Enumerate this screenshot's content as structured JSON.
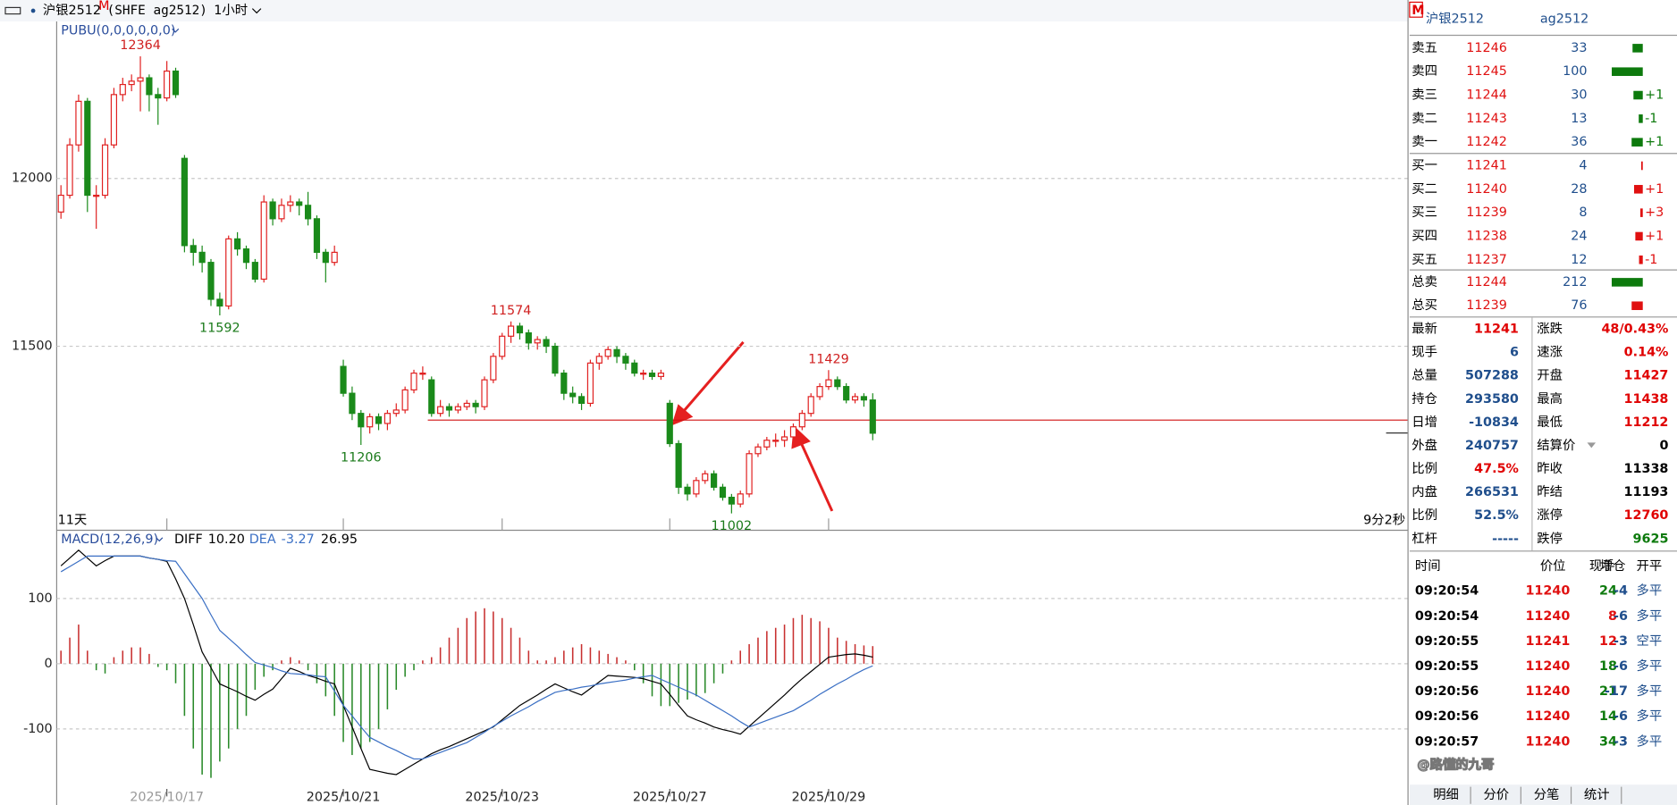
{
  "header": {
    "symbol": "沪银2512",
    "marker": "M",
    "code": "(SHFE ag2512)",
    "period": "1小时"
  },
  "chart_data": [
    {
      "type": "candlestick",
      "indicator": "PUBU(0,0,0,0,0,0)",
      "up_color": "#e02020",
      "down_color": "#1a8a1a",
      "candles": [
        [
          11900,
          11980,
          11880,
          11950
        ],
        [
          11950,
          12120,
          11940,
          12100
        ],
        [
          12100,
          12250,
          12080,
          12230
        ],
        [
          12230,
          12240,
          11900,
          11950
        ],
        [
          11950,
          11980,
          11850,
          11950
        ],
        [
          11950,
          12120,
          11940,
          12100
        ],
        [
          12100,
          12270,
          12090,
          12250
        ],
        [
          12250,
          12300,
          12230,
          12280
        ],
        [
          12280,
          12310,
          12260,
          12290
        ],
        [
          12290,
          12364,
          12200,
          12300
        ],
        [
          12300,
          12310,
          12200,
          12250
        ],
        [
          12250,
          12270,
          12160,
          12240
        ],
        [
          12240,
          12350,
          12230,
          12320
        ],
        [
          12320,
          12330,
          12240,
          12250
        ],
        [
          12060,
          12070,
          11780,
          11800
        ],
        [
          11800,
          11820,
          11740,
          11780
        ],
        [
          11780,
          11800,
          11720,
          11750
        ],
        [
          11750,
          11760,
          11620,
          11640
        ],
        [
          11640,
          11660,
          11592,
          11620
        ],
        [
          11620,
          11830,
          11610,
          11820
        ],
        [
          11820,
          11840,
          11770,
          11790
        ],
        [
          11790,
          11800,
          11730,
          11750
        ],
        [
          11750,
          11760,
          11690,
          11700
        ],
        [
          11700,
          11950,
          11690,
          11930
        ],
        [
          11930,
          11940,
          11860,
          11880
        ],
        [
          11880,
          11940,
          11870,
          11920
        ],
        [
          11920,
          11950,
          11900,
          11930
        ],
        [
          11930,
          11940,
          11890,
          11920
        ],
        [
          11920,
          11960,
          11860,
          11880
        ],
        [
          11880,
          11890,
          11760,
          11780
        ],
        [
          11780,
          11790,
          11690,
          11750
        ],
        [
          11750,
          11800,
          11740,
          11780
        ],
        [
          11440,
          11460,
          11350,
          11360
        ],
        [
          11360,
          11380,
          11280,
          11300
        ],
        [
          11300,
          11310,
          11206,
          11260
        ],
        [
          11260,
          11300,
          11240,
          11290
        ],
        [
          11290,
          11300,
          11250,
          11270
        ],
        [
          11270,
          11310,
          11250,
          11300
        ],
        [
          11300,
          11330,
          11290,
          11310
        ],
        [
          11310,
          11380,
          11300,
          11370
        ],
        [
          11370,
          11430,
          11360,
          11420
        ],
        [
          11420,
          11440,
          11400,
          11420
        ],
        [
          11400,
          11410,
          11290,
          11300
        ],
        [
          11300,
          11340,
          11290,
          11320
        ],
        [
          11320,
          11330,
          11290,
          11310
        ],
        [
          11310,
          11330,
          11300,
          11320
        ],
        [
          11320,
          11340,
          11310,
          11330
        ],
        [
          11330,
          11340,
          11300,
          11320
        ],
        [
          11320,
          11410,
          11310,
          11400
        ],
        [
          11400,
          11480,
          11390,
          11470
        ],
        [
          11470,
          11540,
          11460,
          11530
        ],
        [
          11530,
          11574,
          11510,
          11560
        ],
        [
          11560,
          11570,
          11520,
          11540
        ],
        [
          11540,
          11550,
          11490,
          11510
        ],
        [
          11510,
          11530,
          11490,
          11520
        ],
        [
          11520,
          11530,
          11480,
          11500
        ],
        [
          11500,
          11510,
          11410,
          11420
        ],
        [
          11420,
          11430,
          11340,
          11360
        ],
        [
          11360,
          11380,
          11330,
          11350
        ],
        [
          11350,
          11360,
          11310,
          11330
        ],
        [
          11330,
          11460,
          11320,
          11450
        ],
        [
          11450,
          11480,
          11430,
          11470
        ],
        [
          11470,
          11500,
          11460,
          11490
        ],
        [
          11490,
          11500,
          11450,
          11470
        ],
        [
          11470,
          11480,
          11430,
          11450
        ],
        [
          11450,
          11460,
          11410,
          11420
        ],
        [
          11420,
          11430,
          11400,
          11420
        ],
        [
          11420,
          11430,
          11400,
          11410
        ],
        [
          11410,
          11430,
          11400,
          11420
        ],
        [
          11330,
          11340,
          11200,
          11210
        ],
        [
          11210,
          11220,
          11060,
          11080
        ],
        [
          11080,
          11090,
          11040,
          11060
        ],
        [
          11060,
          11110,
          11050,
          11100
        ],
        [
          11100,
          11130,
          11090,
          11120
        ],
        [
          11120,
          11130,
          11070,
          11080
        ],
        [
          11080,
          11090,
          11040,
          11050
        ],
        [
          11050,
          11060,
          11002,
          11030
        ],
        [
          11030,
          11070,
          11020,
          11060
        ],
        [
          11060,
          11190,
          11050,
          11180
        ],
        [
          11180,
          11210,
          11170,
          11200
        ],
        [
          11200,
          11230,
          11190,
          11220
        ],
        [
          11220,
          11240,
          11200,
          11220
        ],
        [
          11220,
          11250,
          11200,
          11230
        ],
        [
          11230,
          11270,
          11220,
          11260
        ],
        [
          11260,
          11310,
          11250,
          11300
        ],
        [
          11300,
          11360,
          11290,
          11350
        ],
        [
          11350,
          11390,
          11340,
          11380
        ],
        [
          11380,
          11429,
          11370,
          11400
        ],
        [
          11400,
          11410,
          11370,
          11380
        ],
        [
          11380,
          11390,
          11330,
          11340
        ],
        [
          11340,
          11360,
          11330,
          11350
        ],
        [
          11350,
          11360,
          11320,
          11340
        ],
        [
          11340,
          11360,
          11220,
          11241
        ]
      ],
      "ylim": [
        10955,
        12468
      ],
      "yticks": [
        11500,
        12000
      ],
      "grid": true,
      "annotations": [
        {
          "x": 9,
          "y": 12364,
          "color": "#d02020"
        },
        {
          "x": 18,
          "y": 11592,
          "color": "#1a7a1a"
        },
        {
          "x": 34,
          "y": 11206,
          "color": "#1a7a1a"
        },
        {
          "x": 51,
          "y": 11574,
          "color": "#d02020"
        },
        {
          "x": 76,
          "y": 11002,
          "color": "#1a7a1a"
        },
        {
          "x": 87,
          "y": 11429,
          "color": "#d02020"
        }
      ],
      "reference_line": {
        "value": 11280,
        "color": "#d01010"
      },
      "left_note": "11天",
      "right_note": "9分2秒"
    },
    {
      "type": "macd",
      "title": "MACD(12,26,9)",
      "series": [
        {
          "name": "DIFF",
          "label": "10.20",
          "color": "#000000",
          "values": [
            150,
            162,
            174,
            162,
            150,
            158,
            165,
            165,
            165,
            165,
            162,
            160,
            157,
            130,
            100,
            60,
            18,
            -6,
            -31,
            -37,
            -43,
            -50,
            -56,
            -47,
            -39,
            -23,
            -7,
            -12,
            -18,
            -22,
            -27,
            -31,
            -64,
            -97,
            -130,
            -162,
            -165,
            -168,
            -170,
            -162,
            -154,
            -146,
            -138,
            -132,
            -127,
            -121,
            -115,
            -109,
            -103,
            -97,
            -86,
            -75,
            -64,
            -56,
            -48,
            -39,
            -31,
            -37,
            -43,
            -48,
            -38,
            -28,
            -18,
            -19,
            -20,
            -21,
            -23,
            -27,
            -31,
            -47,
            -64,
            -80,
            -86,
            -91,
            -97,
            -101,
            -104,
            -108,
            -96,
            -84,
            -72,
            -60,
            -48,
            -35,
            -23,
            -12,
            -1,
            10,
            12,
            14,
            15,
            13,
            10.2
          ]
        },
        {
          "name": "DEA",
          "label": "-3.27",
          "color": "#3a6fc4",
          "values": [
            141,
            149,
            157,
            165,
            165,
            165,
            165,
            165,
            165,
            165,
            162,
            160,
            158,
            157,
            138,
            119,
            100,
            75,
            51,
            39,
            27,
            14,
            2,
            -2,
            -6,
            -11,
            -15,
            -16,
            -17,
            -19,
            -20,
            -42,
            -64,
            -80,
            -97,
            -113,
            -120,
            -127,
            -133,
            -140,
            -146,
            -146,
            -141,
            -136,
            -131,
            -126,
            -121,
            -113,
            -105,
            -96,
            -88,
            -80,
            -73,
            -66,
            -58,
            -51,
            -44,
            -41,
            -39,
            -36,
            -34,
            -31,
            -29,
            -27,
            -25,
            -22,
            -20,
            -18,
            -24,
            -30,
            -36,
            -42,
            -48,
            -56,
            -64,
            -72,
            -80,
            -89,
            -97,
            -92,
            -87,
            -82,
            -77,
            -72,
            -64,
            -56,
            -47,
            -39,
            -31,
            -24,
            -16,
            -9,
            -3.27
          ]
        }
      ],
      "histogram": {
        "label": "26.95",
        "up_color": "#c83030",
        "down_color": "#2a8a2a",
        "values": [
          20,
          40,
          60,
          20,
          -10,
          -15,
          10,
          20,
          25,
          25,
          15,
          -5,
          -10,
          -30,
          -80,
          -130,
          -170,
          -175,
          -150,
          -130,
          -100,
          -80,
          -40,
          -20,
          -10,
          5,
          10,
          5,
          -10,
          -30,
          -50,
          -80,
          -120,
          -140,
          -130,
          -120,
          -100,
          -70,
          -40,
          -20,
          -10,
          5,
          10,
          25,
          40,
          55,
          70,
          80,
          85,
          80,
          70,
          55,
          40,
          20,
          5,
          5,
          10,
          20,
          25,
          30,
          25,
          20,
          15,
          10,
          5,
          -10,
          -30,
          -50,
          -65,
          -65,
          -60,
          -55,
          -50,
          -45,
          -30,
          -15,
          5,
          20,
          30,
          40,
          50,
          55,
          60,
          70,
          75,
          70,
          65,
          55,
          40,
          35,
          30,
          28,
          26.95
        ]
      },
      "ylim": [
        -192,
        203
      ],
      "yticks": [
        -100,
        0,
        100
      ],
      "grid": true,
      "xticks": [
        {
          "value": 12,
          "label": "2025/10/17"
        },
        {
          "value": 32,
          "label": "2025/10/21"
        },
        {
          "value": 50,
          "label": "2025/10/23"
        },
        {
          "value": 69,
          "label": "2025/10/27"
        },
        {
          "value": 87,
          "label": "2025/10/29"
        }
      ]
    }
  ],
  "quote": {
    "marker": "M",
    "title": "沪银2512",
    "code": "ag2512",
    "book": [
      {
        "label": "卖五",
        "price": 11246,
        "volume": 33,
        "color": "#0d7a0d"
      },
      {
        "label": "卖四",
        "price": 11245,
        "volume": 100,
        "color": "#0d7a0d"
      },
      {
        "label": "卖三",
        "price": 11244,
        "volume": 30,
        "color": "#0d7a0d",
        "change": "+1"
      },
      {
        "label": "卖二",
        "price": 11243,
        "volume": 13,
        "color": "#0d7a0d",
        "change": "-1"
      },
      {
        "label": "卖一",
        "price": 11242,
        "volume": 36,
        "color": "#0d7a0d",
        "change": "+1"
      },
      {
        "label": "买一",
        "price": 11241,
        "volume": 4,
        "color": "#e01010"
      },
      {
        "label": "买二",
        "price": 11240,
        "volume": 28,
        "color": "#e01010",
        "change": "+1"
      },
      {
        "label": "买三",
        "price": 11239,
        "volume": 8,
        "color": "#e01010",
        "change": "+3"
      },
      {
        "label": "买四",
        "price": 11238,
        "volume": 24,
        "color": "#e01010",
        "change": "+1"
      },
      {
        "label": "买五",
        "price": 11237,
        "volume": 12,
        "color": "#e01010",
        "change": "-1"
      }
    ],
    "totals": [
      {
        "label": "总卖",
        "price": 11244,
        "volume": 212,
        "color": "#0d7a0d"
      },
      {
        "label": "总买",
        "price": 11239,
        "volume": 76,
        "color": "#e01010"
      }
    ],
    "stats": [
      [
        {
          "label": "最新",
          "value": 11241,
          "color": "#e00000"
        },
        {
          "label": "涨跌",
          "value": "48/0.43%",
          "color": "#e00000"
        }
      ],
      [
        {
          "label": "现手",
          "value": 6,
          "color": "#1f4e8c"
        },
        {
          "label": "速涨",
          "value": "0.14%",
          "color": "#e00000"
        }
      ],
      [
        {
          "label": "总量",
          "value": 507288,
          "color": "#1f4e8c"
        },
        {
          "label": "开盘",
          "value": 11427,
          "color": "#e00000"
        }
      ],
      [
        {
          "label": "持仓",
          "value": 293580,
          "color": "#1f4e8c"
        },
        {
          "label": "最高",
          "value": 11438,
          "color": "#e00000"
        }
      ],
      [
        {
          "label": "日增",
          "value": -10834,
          "color": "#1f4e8c"
        },
        {
          "label": "最低",
          "value": 11212,
          "color": "#e00000"
        }
      ],
      [
        {
          "label": "外盘",
          "value": 240757,
          "color": "#1f4e8c"
        },
        {
          "label": "结算价",
          "value": 0,
          "color": "#000000"
        }
      ],
      [
        {
          "label": "比例",
          "value": "47.5%",
          "color": "#e00000"
        },
        {
          "label": "昨收",
          "value": 11338,
          "color": "#000000"
        }
      ],
      [
        {
          "label": "内盘",
          "value": 266531,
          "color": "#1f4e8c"
        },
        {
          "label": "昨结",
          "value": 11193,
          "color": "#000000"
        }
      ],
      [
        {
          "label": "比例",
          "value": "52.5%",
          "color": "#1f4e8c"
        },
        {
          "label": "涨停",
          "value": 12760,
          "color": "#e00000"
        }
      ],
      [
        {
          "label": "杠杆",
          "value": "-----",
          "color": "#1f4e8c"
        },
        {
          "label": "跌停",
          "value": 9625,
          "color": "#0d7a0d"
        }
      ]
    ],
    "trades": {
      "columns": [
        "时间",
        "价位",
        "现手",
        "增仓",
        "开平"
      ],
      "rows": [
        [
          "09:20:54",
          11240,
          24,
          -4,
          "多平"
        ],
        [
          "09:20:54",
          11240,
          8,
          -6,
          "多平"
        ],
        [
          "09:20:55",
          11241,
          12,
          -3,
          "空平"
        ],
        [
          "09:20:55",
          11240,
          18,
          -6,
          "多平"
        ],
        [
          "09:20:56",
          11240,
          21,
          -17,
          "多平"
        ],
        [
          "09:20:56",
          11240,
          14,
          -6,
          "多平"
        ],
        [
          "09:20:57",
          11240,
          34,
          -3,
          "多平"
        ]
      ],
      "hand_colors": [
        "#0d7a0d",
        "#e01010",
        "#e01010",
        "#0d7a0d",
        "#0d7a0d",
        "#0d7a0d",
        "#0d7a0d"
      ]
    },
    "tabs": [
      "明细",
      "分价",
      "分笔",
      "统计"
    ]
  },
  "watermark": "@路懂的九哥"
}
